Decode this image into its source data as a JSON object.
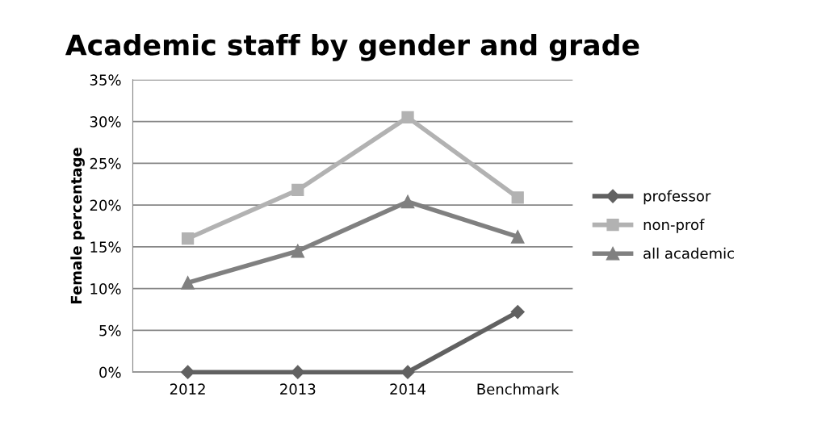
{
  "chart_data": {
    "type": "line",
    "title": "Academic staff by gender and grade",
    "ylabel": "Female percentage",
    "categories": [
      "2012",
      "2013",
      "2014",
      "Benchmark"
    ],
    "series": [
      {
        "name": "professor",
        "color": "#616161",
        "marker": "diamond",
        "values": [
          0,
          0,
          0,
          7.2
        ]
      },
      {
        "name": "non-prof",
        "color": "#b2b2b2",
        "marker": "square",
        "values": [
          16.0,
          21.8,
          30.5,
          20.9
        ]
      },
      {
        "name": "all academic",
        "color": "#808080",
        "marker": "triangle",
        "values": [
          10.7,
          14.5,
          20.4,
          16.2
        ]
      }
    ],
    "ylim": [
      0,
      35
    ],
    "yticks": [
      {
        "value": 0,
        "label": "0%"
      },
      {
        "value": 5,
        "label": "5%"
      },
      {
        "value": 10,
        "label": "10%"
      },
      {
        "value": 15,
        "label": "15%"
      },
      {
        "value": 20,
        "label": "20%"
      },
      {
        "value": 25,
        "label": "25%"
      },
      {
        "value": 30,
        "label": "30%"
      },
      {
        "value": 35,
        "label": "35%"
      }
    ],
    "grid": "y",
    "legend": "right",
    "line_style": "solid"
  }
}
